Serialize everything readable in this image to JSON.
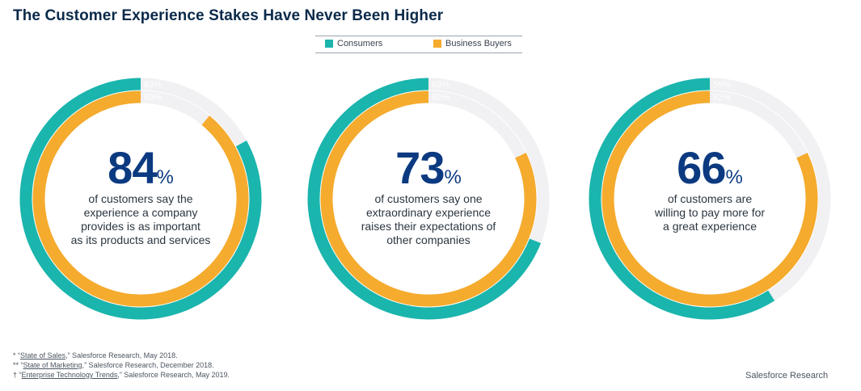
{
  "title": "The Customer Experience Stakes Have Never Been Higher",
  "legend": [
    {
      "label": "Consumers",
      "color": "#1ab5ad"
    },
    {
      "label": "Business Buyers",
      "color": "#f5ab2d"
    }
  ],
  "colors": {
    "consumers": "#1ab5ad",
    "buyers": "#f5ab2d",
    "track": "#f1f0f2",
    "accent": "#0b3a80"
  },
  "chart_data": [
    {
      "type": "pie",
      "series": [
        {
          "name": "Consumers",
          "values": [
            83
          ]
        },
        {
          "name": "Business Buyers",
          "values": [
            89
          ]
        }
      ],
      "ring_labels": [
        "83%",
        "89%"
      ],
      "headline": "84",
      "unit": "%",
      "description": "of customers say the experience a company provides is as important as its products and services",
      "description_lines": [
        "of customers say the",
        "experience a company",
        "provides is as important",
        "as its products and services"
      ]
    },
    {
      "type": "pie",
      "series": [
        {
          "name": "Consumers",
          "values": [
            69
          ]
        },
        {
          "name": "Business Buyers",
          "values": [
            82
          ]
        }
      ],
      "ring_labels": [
        "69%",
        "82%"
      ],
      "headline": "73",
      "unit": "%",
      "description": "of customers say one extraordinary experience raises their expectations of other companies",
      "description_lines": [
        "of customers say one",
        "extraordinary experience",
        "raises their expectations of",
        "other companies"
      ]
    },
    {
      "type": "pie",
      "series": [
        {
          "name": "Consumers",
          "values": [
            59
          ]
        },
        {
          "name": "Business Buyers",
          "values": [
            82
          ]
        }
      ],
      "ring_labels": [
        "59%",
        "82%"
      ],
      "headline": "66",
      "unit": "%",
      "description": "of customers are willing to pay more for a great experience",
      "description_lines": [
        "of customers are",
        "willing to pay more for",
        "a great experience"
      ]
    }
  ],
  "footnotes": [
    {
      "mark": "*",
      "link": "State of Sales",
      "rest": ",” Salesforce Research, May 2018."
    },
    {
      "mark": "**",
      "link": "State of Marketing",
      "rest": ",” Salesforce Research, December 2018."
    },
    {
      "mark": "†",
      "link": "Enterprise Technology Trends",
      "rest": ",” Salesforce Research, May 2019."
    }
  ],
  "brand": "Salesforce Research"
}
